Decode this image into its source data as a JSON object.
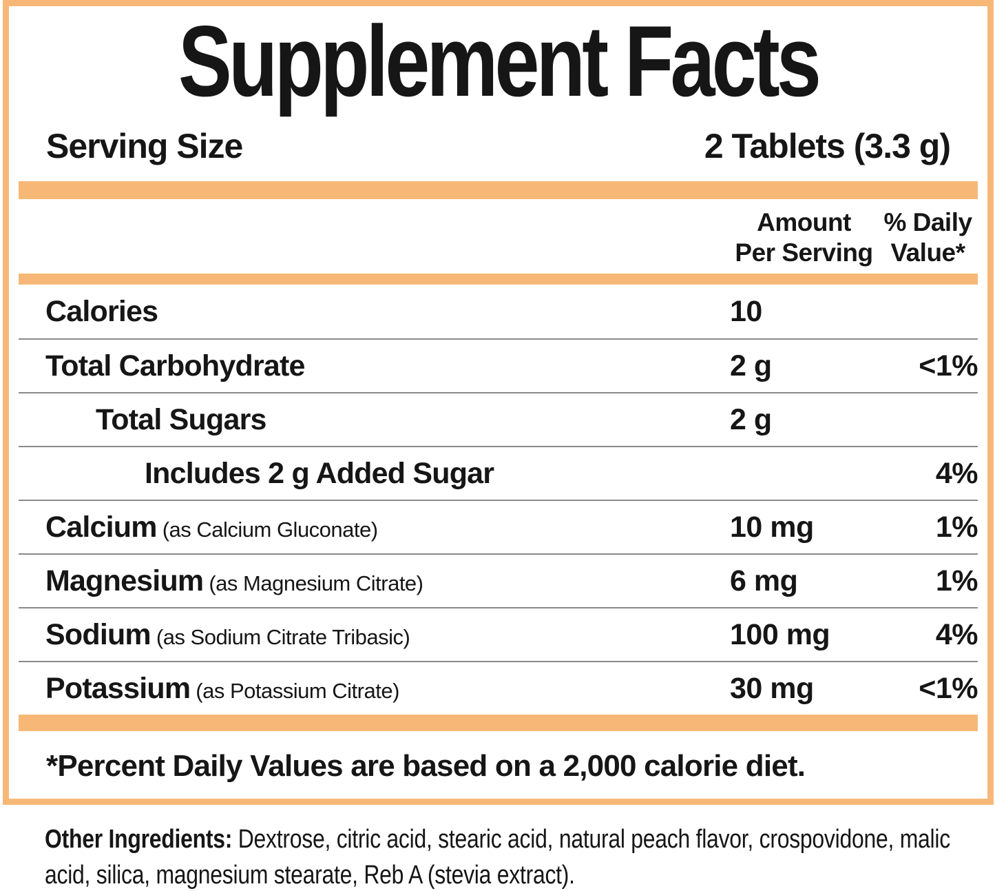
{
  "colors": {
    "accent_orange": "#F7B877",
    "divider_gray": "#8a8a8a",
    "text": "#161616"
  },
  "title": "Supplement Facts",
  "serving": {
    "label": "Serving Size",
    "value": "2 Tablets (3.3 g)"
  },
  "header": {
    "amount_line1": "Amount",
    "amount_line2": "Per Serving",
    "dv_line1": "% Daily",
    "dv_line2": "Value*"
  },
  "rows": [
    {
      "name": "Calories",
      "detail": "",
      "amount": "10",
      "dv": ""
    },
    {
      "name": "Total Carbohydrate",
      "detail": "",
      "amount": "2 g",
      "dv": "<1%"
    },
    {
      "name": "Total Sugars",
      "detail": "",
      "amount": "2 g",
      "dv": ""
    },
    {
      "name": "Includes 2 g Added Sugar",
      "detail": "",
      "amount": "",
      "dv": "4%"
    },
    {
      "name": "Calcium",
      "detail": "(as Calcium Gluconate)",
      "amount": "10 mg",
      "dv": "1%"
    },
    {
      "name": "Magnesium",
      "detail": "(as Magnesium Citrate)",
      "amount": "6 mg",
      "dv": "1%"
    },
    {
      "name": "Sodium",
      "detail": "(as Sodium Citrate Tribasic)",
      "amount": "100 mg",
      "dv": "4%"
    },
    {
      "name": "Potassium",
      "detail": "(as Potassium Citrate)",
      "amount": "30 mg",
      "dv": "<1%"
    }
  ],
  "footnote": "*Percent Daily Values are based on a 2,000 calorie diet.",
  "other_ingredients": {
    "label": "Other Ingredients:",
    "text": " Dextrose, citric acid, stearic acid, natural peach flavor, crospovidone, malic acid, silica, magnesium stearate, Reb A (stevia extract)."
  }
}
